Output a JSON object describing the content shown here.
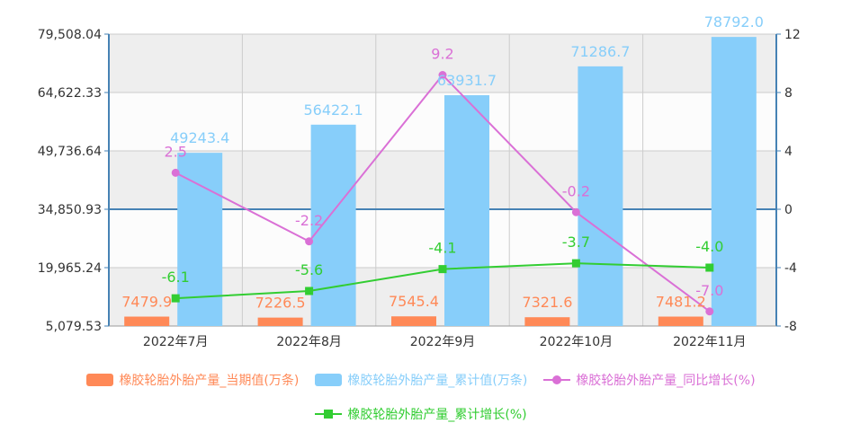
{
  "chart_data": {
    "type": "bar+line",
    "categories": [
      "2022年7月",
      "2022年8月",
      "2022年9月",
      "2022年10月",
      "2022年11月"
    ],
    "left_axis": {
      "ticks": [
        "79,508.04",
        "64,622.33",
        "49,736.64",
        "34,850.93",
        "19,965.24",
        "5,079.53"
      ],
      "ylim": [
        5079.53,
        79508.04
      ]
    },
    "right_axis": {
      "ticks": [
        "12",
        "8",
        "4",
        "0",
        "-4",
        "-8"
      ],
      "ylim": [
        -8,
        12
      ]
    },
    "grid": true,
    "legend_position": "bottom",
    "series": [
      {
        "name": "橡胶轮胎外胎产量_当期值(万条)",
        "type": "bar",
        "axis": "left",
        "color": "#ff8957",
        "values": [
          7479.9,
          7226.5,
          7545.4,
          7321.6,
          7481.2
        ],
        "labels": [
          "7479.9",
          "7226.5",
          "7545.4",
          "7321.6",
          "7481.2"
        ]
      },
      {
        "name": "橡胶轮胎外胎产量_累计值(万条)",
        "type": "bar",
        "axis": "left",
        "color": "#87cefa",
        "values": [
          49243.4,
          56422.1,
          63931.7,
          71286.7,
          78792.0
        ],
        "labels": [
          "49243.4",
          "56422.1",
          "63931.7",
          "71286.7",
          "78792.0"
        ]
      },
      {
        "name": "橡胶轮胎外胎产量_同比增长(%)",
        "type": "line",
        "axis": "right",
        "marker": "circle",
        "color": "#da70d6",
        "values": [
          2.5,
          -2.2,
          9.2,
          -0.2,
          -7.0
        ],
        "labels": [
          "2.5",
          "-2.2",
          "9.2",
          "-0.2",
          "-7.0"
        ]
      },
      {
        "name": "橡胶轮胎外胎产量_累计增长(%)",
        "type": "line",
        "axis": "right",
        "marker": "square",
        "color": "#32cd32",
        "values": [
          -6.1,
          -5.6,
          -4.1,
          -3.7,
          -4.0
        ],
        "labels": [
          "-6.1",
          "-5.6",
          "-4.1",
          "-3.7",
          "-4.0"
        ]
      }
    ]
  }
}
